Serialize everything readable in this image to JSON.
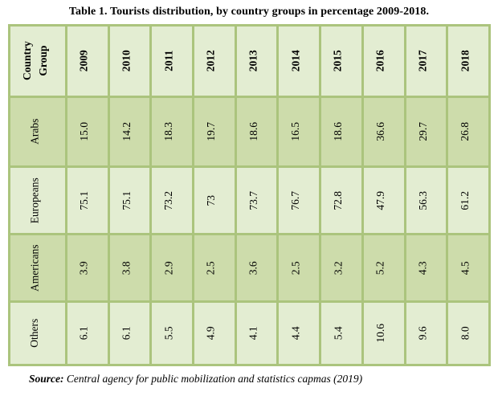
{
  "caption": "Table 1. Tourists distribution, by country groups in percentage 2009-2018.",
  "table": {
    "corner": {
      "line1": "Country",
      "line2": "Group"
    },
    "years": [
      "2009",
      "2010",
      "2011",
      "2012",
      "2013",
      "2014",
      "2015",
      "2016",
      "2017",
      "2018"
    ],
    "rows": [
      {
        "label": "Arabs",
        "values": [
          "15.0",
          "14.2",
          "18.3",
          "19.7",
          "18.6",
          "16.5",
          "18.6",
          "36.6",
          "29.7",
          "26.8"
        ]
      },
      {
        "label": "Europeans",
        "values": [
          "75.1",
          "75.1",
          "73.2",
          "73",
          "73.7",
          "76.7",
          "72.8",
          "47.9",
          "56.3",
          "61.2"
        ]
      },
      {
        "label": "Americans",
        "values": [
          "3.9",
          "3.8",
          "2.9",
          "2.5",
          "3.6",
          "2.5",
          "3.2",
          "5.2",
          "4.3",
          "4.5"
        ]
      },
      {
        "label": "Others",
        "values": [
          "6.1",
          "6.1",
          "5.5",
          "4.9",
          "4.1",
          "4.4",
          "5.4",
          "10.6",
          "9.6",
          "8.0"
        ]
      }
    ]
  },
  "source": {
    "label": "Source:",
    "text": "Central agency for public mobilization and statistics capmas (2019)"
  },
  "colors": {
    "cell_light": "#e3edd2",
    "cell_dark": "#cddcab",
    "border": "#abc47d",
    "text": "#000000"
  },
  "chart_data": {
    "type": "table",
    "title": "Table 1. Tourists distribution, by country groups in percentage 2009-2018.",
    "unit": "percent",
    "categories": [
      "2009",
      "2010",
      "2011",
      "2012",
      "2013",
      "2014",
      "2015",
      "2016",
      "2017",
      "2018"
    ],
    "series": [
      {
        "name": "Arabs",
        "values": [
          15.0,
          14.2,
          18.3,
          19.7,
          18.6,
          16.5,
          18.6,
          36.6,
          29.7,
          26.8
        ]
      },
      {
        "name": "Europeans",
        "values": [
          75.1,
          75.1,
          73.2,
          73,
          73.7,
          76.7,
          72.8,
          47.9,
          56.3,
          61.2
        ]
      },
      {
        "name": "Americans",
        "values": [
          3.9,
          3.8,
          2.9,
          2.5,
          3.6,
          2.5,
          3.2,
          5.2,
          4.3,
          4.5
        ]
      },
      {
        "name": "Others",
        "values": [
          6.1,
          6.1,
          5.5,
          4.9,
          4.1,
          4.4,
          5.4,
          10.6,
          9.6,
          8.0
        ]
      }
    ],
    "source": "Central agency for public mobilization and statistics capmas (2019)"
  }
}
